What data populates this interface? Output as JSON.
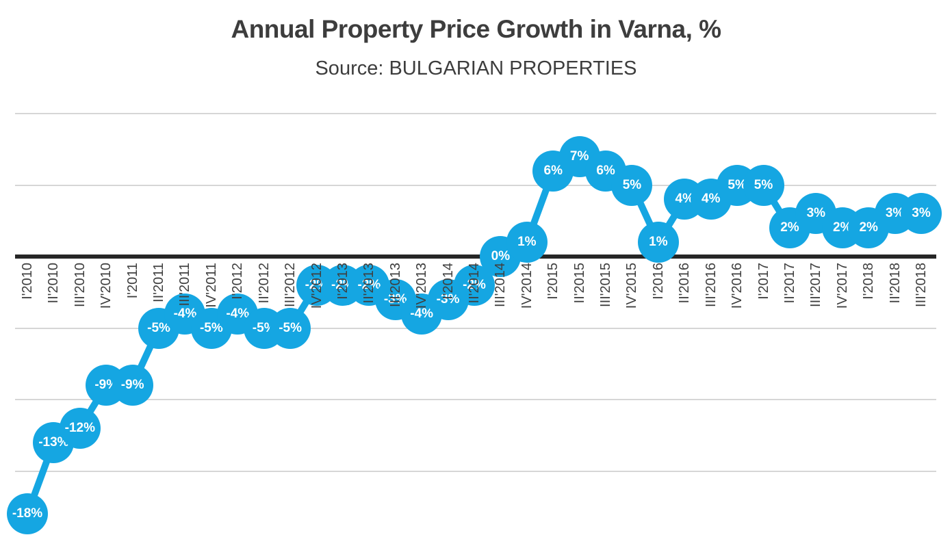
{
  "header": {
    "title": "Annual Property Price Growth in Varna, %",
    "subtitle": "Source: BULGARIAN PROPERTIES"
  },
  "chart_data": {
    "type": "line",
    "title": "Annual Property Price Growth in Varna, %",
    "subtitle": "Source: BULGARIAN PROPERTIES",
    "categories": [
      "I'2010",
      "II'2010",
      "III'2010",
      "IV'2010",
      "I'2011",
      "II'2011",
      "III'2011",
      "IV'2011",
      "I'2012",
      "II'2012",
      "III'2012",
      "IV'2012",
      "I'2013",
      "II'2013",
      "III'2013",
      "IV'2013",
      "I'2014",
      "II'2014",
      "III'2014",
      "IV'2014",
      "I'2015",
      "II'2015",
      "III'2015",
      "IV'2015",
      "I'2016",
      "II'2016",
      "III'2016",
      "IV'2016",
      "I'2017",
      "II'2017",
      "III'2017",
      "IV'2017",
      "I'2018",
      "II'2018",
      "III'2018"
    ],
    "series": [
      {
        "name": "Annual property price growth",
        "values": [
          -18,
          -13,
          -12,
          -9,
          -9,
          -5,
          -4,
          -5,
          -4,
          -5,
          -5,
          -2,
          -2,
          -2,
          -3,
          -4,
          -3,
          -2,
          0,
          1,
          6,
          7,
          6,
          5,
          1,
          4,
          4,
          5,
          5,
          2,
          3,
          2,
          2,
          3,
          3
        ],
        "point_labels": [
          "-18%",
          "-13%",
          "-12%",
          "-9%",
          "-9%",
          "-5%",
          "-4%",
          "-5%",
          "-4%",
          "-5%",
          "-5%",
          "-2%",
          "-2%",
          "-2%",
          "-3%",
          "-4%",
          "-3%",
          "-2%",
          "0%",
          "1%",
          "6%",
          "7%",
          "6%",
          "5%",
          "1%",
          "4%",
          "4%",
          "5%",
          "5%",
          "2%",
          "3%",
          "2%",
          "2%",
          "3%",
          "3%"
        ]
      }
    ],
    "xlabel": "",
    "ylabel": "",
    "ylim": [
      -20,
      10
    ],
    "grid_step": 5,
    "grid_values": [
      10,
      5,
      -5,
      -10,
      -15
    ],
    "zero_axis": 0,
    "legend": "none",
    "grid": "horizontal",
    "colors": {
      "marker": "#15a6e2",
      "line": "#15a6e2",
      "point_label_text": "#ffffff",
      "tick_text": "#3f3f3f",
      "title_text": "#3d3d3d",
      "gridline": "#d6d6d6",
      "zero_axis": "#262626"
    }
  }
}
